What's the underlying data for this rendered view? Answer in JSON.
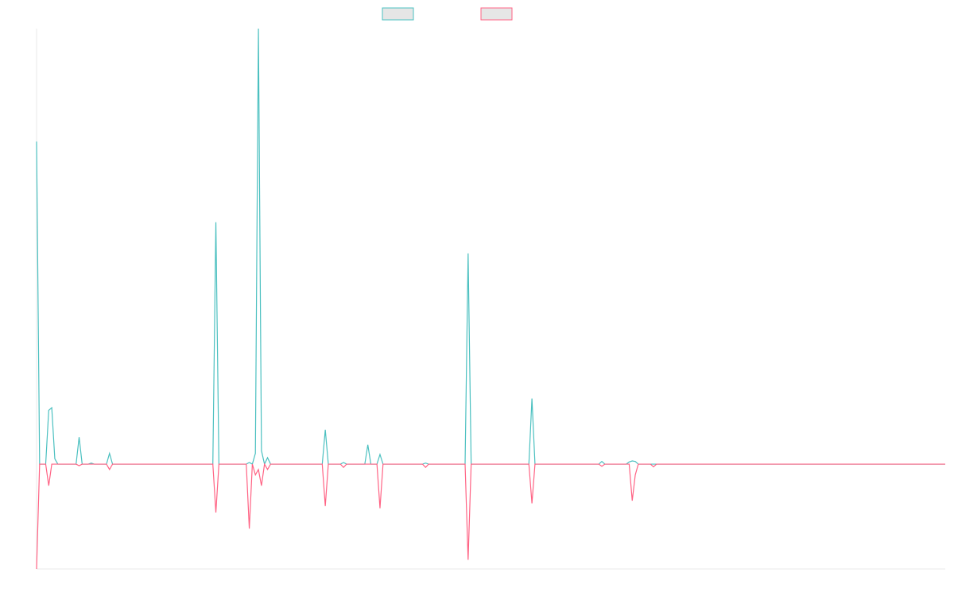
{
  "chart_data": {
    "type": "line",
    "title": "",
    "xlabel": "",
    "ylabel": "",
    "grid": false,
    "legend_position": "top-center",
    "x_count": 300,
    "ylim": [
      -0.195,
      0.81
    ],
    "zero_baseline": true,
    "series": [
      {
        "color": "#4bc0c0",
        "fill": "#e6e6e6",
        "spikes": [
          [
            0,
            0.6
          ],
          [
            4,
            0.1
          ],
          [
            5,
            0.105
          ],
          [
            6,
            0.01
          ],
          [
            14,
            0.05
          ],
          [
            18,
            0.002
          ],
          [
            24,
            0.02
          ],
          [
            59,
            0.45
          ],
          [
            70,
            0.003
          ],
          [
            72,
            0.02
          ],
          [
            73,
            0.81
          ],
          [
            74,
            0.025
          ],
          [
            76,
            0.012
          ],
          [
            95,
            0.064
          ],
          [
            101,
            0.003
          ],
          [
            109,
            0.036
          ],
          [
            113,
            0.018
          ],
          [
            128,
            0.002
          ],
          [
            142,
            0.392
          ],
          [
            163,
            0.122
          ],
          [
            186,
            0.005
          ],
          [
            195,
            0.004
          ],
          [
            196,
            0.006
          ],
          [
            197,
            0.005
          ]
        ]
      },
      {
        "color": "#ff6384",
        "fill": "#e6e6e6",
        "spikes": [
          [
            0,
            -0.195
          ],
          [
            4,
            -0.04
          ],
          [
            14,
            -0.003
          ],
          [
            24,
            -0.01
          ],
          [
            59,
            -0.09
          ],
          [
            70,
            -0.12
          ],
          [
            72,
            -0.02
          ],
          [
            73,
            -0.01
          ],
          [
            74,
            -0.04
          ],
          [
            76,
            -0.01
          ],
          [
            95,
            -0.078
          ],
          [
            101,
            -0.006
          ],
          [
            113,
            -0.082
          ],
          [
            128,
            -0.006
          ],
          [
            142,
            -0.178
          ],
          [
            163,
            -0.073
          ],
          [
            186,
            -0.004
          ],
          [
            196,
            -0.068
          ],
          [
            197,
            -0.02
          ],
          [
            203,
            -0.005
          ]
        ]
      }
    ]
  }
}
